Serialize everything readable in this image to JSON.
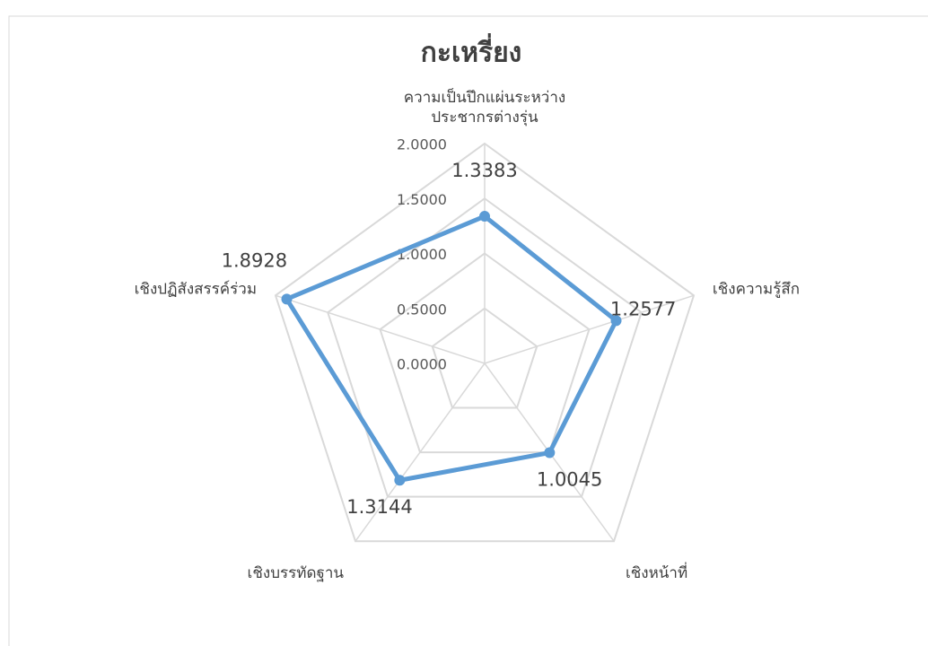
{
  "chart_data": {
    "type": "radar",
    "title": "กะเหรี่ยง",
    "categories": [
      "ความเป็นปึกแผ่นระหว่าง\nประชากรต่างรุ่น",
      "เชิงความรู้สึก",
      "เชิงหน้าที่",
      "เชิงบรรทัดฐาน",
      "เชิงปฏิสังสรรค์ร่วม"
    ],
    "series": [
      {
        "name": "กะเหรี่ยง",
        "color": "#5b9bd5",
        "values": [
          1.3383,
          1.2577,
          1.0045,
          1.3144,
          1.8928
        ]
      }
    ],
    "ylim": [
      0,
      2
    ],
    "yticks": [
      {
        "value": 0,
        "label": "0.0000"
      },
      {
        "value": 0.5,
        "label": "0.5000"
      },
      {
        "value": 1,
        "label": "1.0000"
      },
      {
        "value": 1.5,
        "label": "1.5000"
      },
      {
        "value": 2,
        "label": "2.0000"
      }
    ],
    "grid": true,
    "data_labels": true
  }
}
